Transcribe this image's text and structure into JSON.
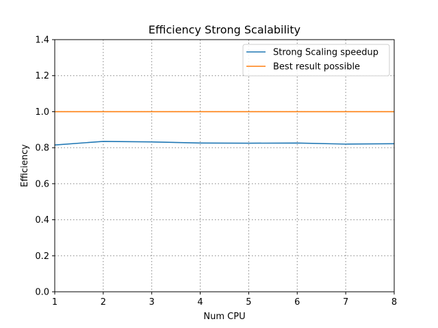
{
  "chart_data": {
    "type": "line",
    "title": "Efficiency Strong Scalability",
    "xlabel": "Num CPU",
    "ylabel": "Efficiency",
    "xlim": [
      1,
      8
    ],
    "ylim": [
      0,
      1.4
    ],
    "x_ticks": [
      1,
      2,
      3,
      4,
      5,
      6,
      7,
      8
    ],
    "y_ticks": [
      "0.0",
      "0.2",
      "0.4",
      "0.6",
      "0.8",
      "1.0",
      "1.2",
      "1.4"
    ],
    "grid": true,
    "legend_position": "top-right",
    "x": [
      1,
      2,
      3,
      4,
      5,
      6,
      7,
      8
    ],
    "series": [
      {
        "name": "Strong Scaling speedup",
        "color": "#1f77b4",
        "values": [
          0.815,
          0.835,
          0.832,
          0.826,
          0.825,
          0.826,
          0.82,
          0.822
        ]
      },
      {
        "name": "Best result possible",
        "color": "#ff7f0e",
        "values": [
          1.0,
          1.0,
          1.0,
          1.0,
          1.0,
          1.0,
          1.0,
          1.0
        ]
      }
    ]
  }
}
